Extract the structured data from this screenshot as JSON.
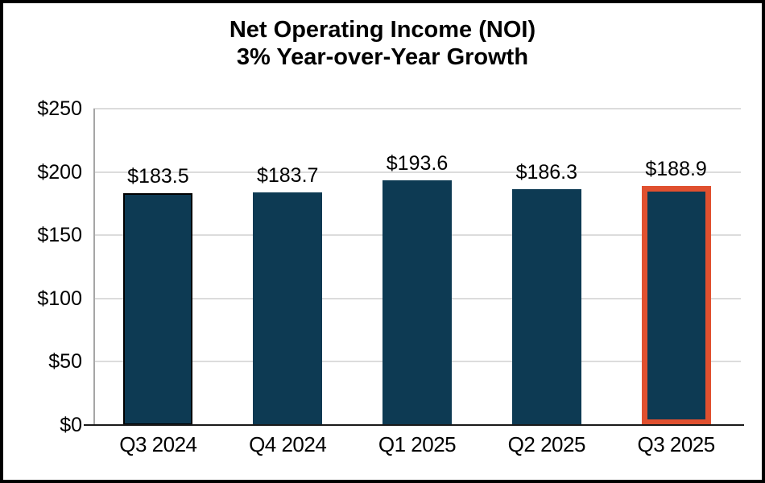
{
  "chart_data": {
    "type": "bar",
    "title": "Net Operating Income (NOI)",
    "subtitle": "3% Year-over-Year Growth",
    "categories": [
      "Q3 2024",
      "Q4 2024",
      "Q1 2025",
      "Q2 2025",
      "Q3 2025"
    ],
    "values": [
      183.5,
      183.7,
      193.6,
      186.3,
      188.9
    ],
    "data_labels": [
      "$183.5",
      "$183.7",
      "$193.6",
      "$186.3",
      "$188.9"
    ],
    "ylim": [
      0,
      250
    ],
    "ytick_interval": 50,
    "ytick_labels": [
      "$0",
      "$50",
      "$100",
      "$150",
      "$200",
      "$250"
    ],
    "grid": "horizontal-only",
    "legend": "none",
    "bar_outlines": [
      "black",
      "none",
      "none",
      "none",
      "orange"
    ],
    "colors": {
      "bar_fill": "#0D3A53",
      "first_bar_outline": "#000000",
      "highlight_outline": "#E0502F",
      "gridline": "#DCDCDC",
      "y_axis_line": "#A6A6A6",
      "x_axis_line": "#1A1A1A",
      "text": "#000000",
      "background": "#FFFFFF",
      "frame_border": "#000000"
    }
  }
}
